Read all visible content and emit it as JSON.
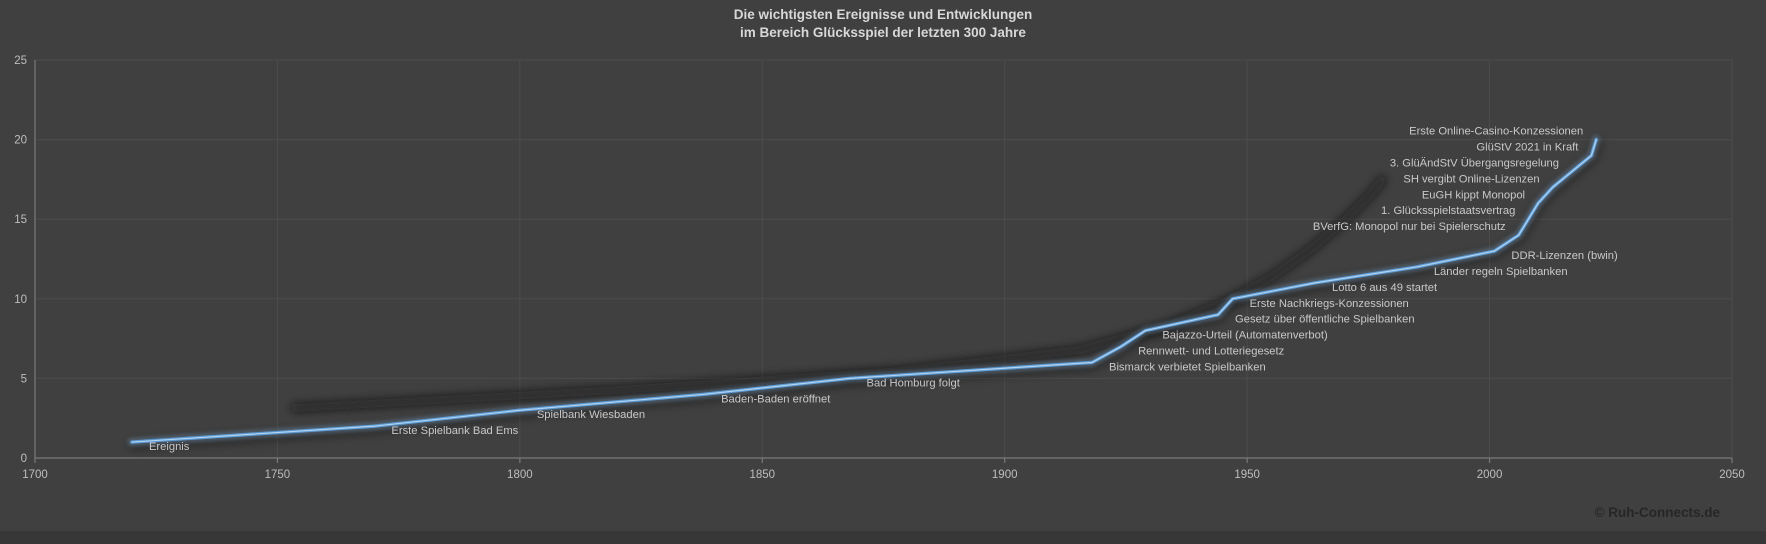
{
  "title": {
    "line1": "Die wichtigsten Ereignisse und Entwicklungen",
    "line2": "im Bereich Glücksspiel der letzten 300 Jahre"
  },
  "footer": {
    "copyright": "© Ruh-Connects.de"
  },
  "colors": {
    "background": "#404040",
    "gridline": "#4c4c4c",
    "axis": "#7a7a7a",
    "tick_label": "#bfbdbd",
    "data_label": "#cac8c8",
    "title_text": "#d8d8d8",
    "line": "#5b9bd5",
    "line_core": "#bcd9f2",
    "line_glow": "rgba(140,185,230,0.28)",
    "shadow": "rgba(12,12,12,0.6)"
  },
  "chart_data": {
    "type": "line",
    "title": "Die wichtigsten Ereignisse und Entwicklungen im Bereich Glücksspiel der letzten 300 Jahre",
    "xlabel": "",
    "ylabel": "",
    "grid": true,
    "legend": "none",
    "x_axis": {
      "min": 1700,
      "max": 2050,
      "ticks": [
        1700,
        1750,
        1800,
        1850,
        1900,
        1950,
        2000,
        2050
      ]
    },
    "y_axis": {
      "min": 0,
      "max": 25,
      "ticks": [
        0,
        5,
        10,
        15,
        20,
        25
      ]
    },
    "series": [
      {
        "name": "Ereignis",
        "points": [
          {
            "year": 1720,
            "value": 1,
            "label": "Ereignis",
            "label_side": "right"
          },
          {
            "year": 1770,
            "value": 2,
            "label": "Erste Spielbank Bad Ems",
            "label_side": "right"
          },
          {
            "year": 1800,
            "value": 3,
            "label": "Spielbank Wiesbaden",
            "label_side": "right"
          },
          {
            "year": 1838,
            "value": 4,
            "label": "Baden-Baden eröffnet",
            "label_side": "right"
          },
          {
            "year": 1868,
            "value": 5,
            "label": "Bad Homburg folgt",
            "label_side": "right"
          },
          {
            "year": 1918,
            "value": 6,
            "label": "Bismarck verbietet Spielbanken",
            "label_side": "right"
          },
          {
            "year": 1924,
            "value": 7,
            "label": "Rennwett- und Lotteriegesetz",
            "label_side": "right"
          },
          {
            "year": 1929,
            "value": 8,
            "label": "Bajazzo-Urteil (Automatenverbot)",
            "label_side": "right"
          },
          {
            "year": 1944,
            "value": 9,
            "label": "Gesetz über öffentliche Spielbanken",
            "label_side": "right"
          },
          {
            "year": 1947,
            "value": 10,
            "label": "Erste Nachkriegs-Konzessionen",
            "label_side": "right"
          },
          {
            "year": 1964,
            "value": 11,
            "label": "Lotto 6 aus 49 startet",
            "label_side": "right"
          },
          {
            "year": 1985,
            "value": 12,
            "label": "Länder regeln Spielbanken",
            "label_side": "right"
          },
          {
            "year": 2001,
            "value": 13,
            "label": "DDR-Lizenzen (bwin)",
            "label_side": "right"
          },
          {
            "year": 2006,
            "value": 14,
            "label": "BVerfG: Monopol nur bei Spielerschutz",
            "label_side": "left"
          },
          {
            "year": 2008,
            "value": 15,
            "label": "1. Glücksspielstaatsvertrag",
            "label_side": "left"
          },
          {
            "year": 2010,
            "value": 16,
            "label": "EuGH kippt Monopol",
            "label_side": "left"
          },
          {
            "year": 2013,
            "value": 17,
            "label": "SH vergibt Online-Lizenzen",
            "label_side": "left"
          },
          {
            "year": 2017,
            "value": 18,
            "label": "3. GlüÄndStV Übergangsregelung",
            "label_side": "left"
          },
          {
            "year": 2021,
            "value": 19,
            "label": "GlüStV 2021 in Kraft",
            "label_side": "left"
          },
          {
            "year": 2022,
            "value": 20,
            "label": "Erste Online-Casino-Konzessionen",
            "label_side": "left"
          }
        ]
      }
    ]
  }
}
